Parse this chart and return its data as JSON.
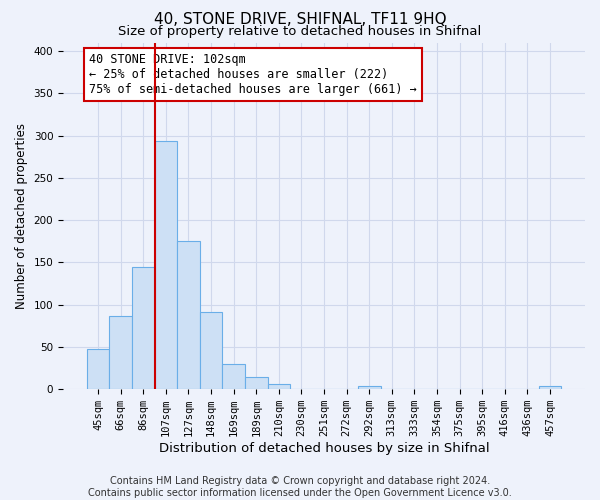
{
  "title": "40, STONE DRIVE, SHIFNAL, TF11 9HQ",
  "subtitle": "Size of property relative to detached houses in Shifnal",
  "xlabel": "Distribution of detached houses by size in Shifnal",
  "ylabel": "Number of detached properties",
  "bar_labels": [
    "45sqm",
    "66sqm",
    "86sqm",
    "107sqm",
    "127sqm",
    "148sqm",
    "169sqm",
    "189sqm",
    "210sqm",
    "230sqm",
    "251sqm",
    "272sqm",
    "292sqm",
    "313sqm",
    "333sqm",
    "354sqm",
    "375sqm",
    "395sqm",
    "416sqm",
    "436sqm",
    "457sqm"
  ],
  "bar_heights": [
    47,
    86,
    144,
    294,
    175,
    91,
    30,
    14,
    6,
    0,
    0,
    0,
    4,
    0,
    0,
    0,
    0,
    0,
    0,
    0,
    4
  ],
  "bar_color": "#cde0f5",
  "bar_edge_color": "#6aaee8",
  "bar_edge_width": 0.8,
  "vline_color": "#cc0000",
  "vline_idx": 3,
  "annotation_line1": "40 STONE DRIVE: 102sqm",
  "annotation_line2": "← 25% of detached houses are smaller (222)",
  "annotation_line3": "75% of semi-detached houses are larger (661) →",
  "annotation_box_edgecolor": "#cc0000",
  "ylim": [
    0,
    410
  ],
  "yticks": [
    0,
    50,
    100,
    150,
    200,
    250,
    300,
    350,
    400
  ],
  "footer_line1": "Contains HM Land Registry data © Crown copyright and database right 2024.",
  "footer_line2": "Contains public sector information licensed under the Open Government Licence v3.0.",
  "bg_color": "#eef2fb",
  "plot_bg_color": "#eef2fb",
  "grid_color": "#d0d8ec",
  "title_fontsize": 11,
  "subtitle_fontsize": 9.5,
  "xlabel_fontsize": 9.5,
  "ylabel_fontsize": 8.5,
  "tick_fontsize": 7.5,
  "ann_fontsize": 8.5,
  "footer_fontsize": 7
}
